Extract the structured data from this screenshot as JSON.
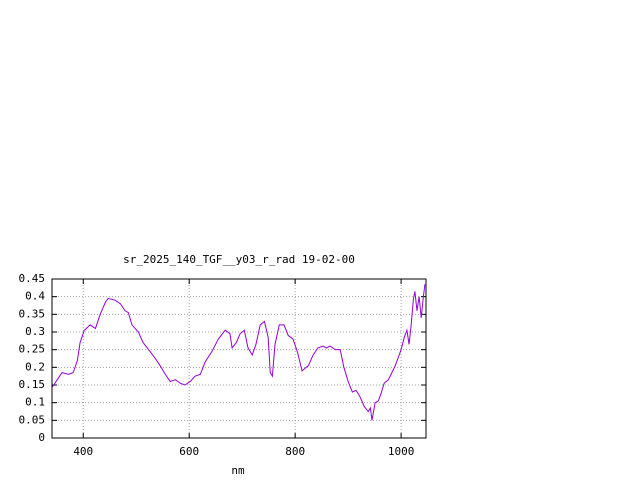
{
  "chart_data": {
    "type": "line",
    "title": "sr_2025_140_TGF__y03_r_rad 19-02-00",
    "x_label": "nm",
    "xlim": [
      341,
      1047
    ],
    "xticks": [
      400,
      600,
      800,
      1000
    ],
    "ylim": [
      0,
      0.45
    ],
    "yticks": [
      0,
      0.05,
      0.1,
      0.15,
      0.2,
      0.25,
      0.3,
      0.35,
      0.4,
      0.45
    ],
    "grid": true,
    "series": [
      {
        "color": "#9400d3",
        "x": [
          342,
          351,
          360,
          372,
          381,
          389,
          394,
          402,
          413,
          423,
          432,
          442,
          447,
          460,
          470,
          479,
          485,
          492,
          504,
          513,
          526,
          536,
          545,
          555,
          564,
          574,
          583,
          592,
          602,
          611,
          621,
          630,
          643,
          655,
          668,
          677,
          681,
          689,
          696,
          704,
          711,
          719,
          726,
          734,
          742,
          749,
          753,
          757,
          762,
          770,
          779,
          787,
          796,
          804,
          813,
          825,
          834,
          843,
          853,
          859,
          866,
          876,
          885,
          892,
          900,
          908,
          915,
          923,
          930,
          938,
          942,
          945,
          951,
          957,
          962,
          968,
          976,
          981,
          989,
          994,
          1000,
          1006,
          1011,
          1015,
          1019,
          1023,
          1026,
          1030,
          1034,
          1038,
          1042,
          1045
        ],
        "values": [
          0.145,
          0.165,
          0.185,
          0.18,
          0.185,
          0.22,
          0.27,
          0.305,
          0.32,
          0.31,
          0.35,
          0.385,
          0.395,
          0.39,
          0.38,
          0.36,
          0.355,
          0.32,
          0.3,
          0.27,
          0.245,
          0.225,
          0.205,
          0.18,
          0.16,
          0.165,
          0.155,
          0.15,
          0.16,
          0.175,
          0.18,
          0.215,
          0.245,
          0.28,
          0.305,
          0.295,
          0.255,
          0.27,
          0.295,
          0.305,
          0.255,
          0.235,
          0.265,
          0.32,
          0.33,
          0.285,
          0.185,
          0.175,
          0.265,
          0.32,
          0.32,
          0.29,
          0.28,
          0.245,
          0.19,
          0.205,
          0.235,
          0.255,
          0.26,
          0.255,
          0.26,
          0.25,
          0.25,
          0.2,
          0.16,
          0.13,
          0.135,
          0.115,
          0.09,
          0.075,
          0.085,
          0.05,
          0.1,
          0.105,
          0.125,
          0.155,
          0.165,
          0.18,
          0.205,
          0.225,
          0.25,
          0.285,
          0.305,
          0.265,
          0.32,
          0.39,
          0.415,
          0.36,
          0.4,
          0.34,
          0.4,
          0.435
        ]
      }
    ]
  }
}
